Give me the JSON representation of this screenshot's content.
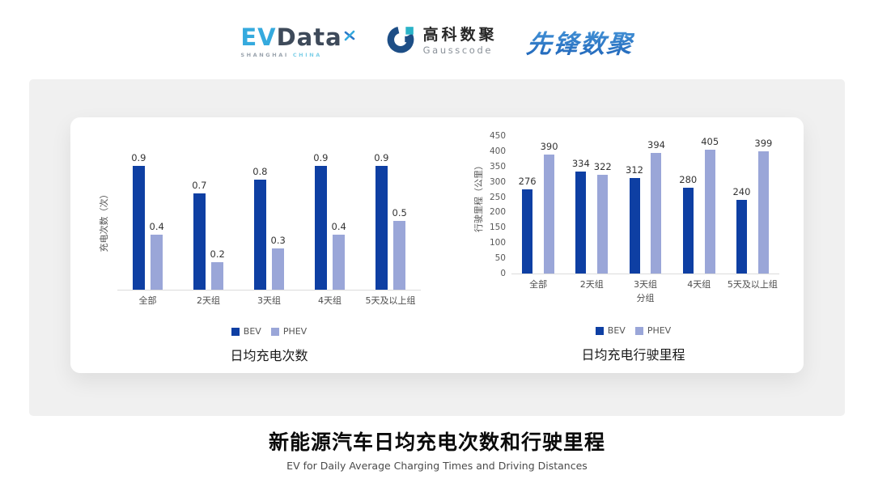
{
  "header": {
    "evdata_logo": {
      "ev": "EV",
      "data_word": "Data",
      "sub_shanghai": "SHANGHAI",
      "sub_china": "CHINA"
    },
    "gausscode_logo": {
      "cn": "高科数聚",
      "en": "Gausscode"
    },
    "pioneer_logo": {
      "text": "先锋数聚"
    }
  },
  "colors": {
    "bev": "#0e3fa3",
    "phev": "#9aa6d8",
    "evdata_cyan": "#35aade",
    "evdata_slate": "#3e4a5a",
    "gauss_navy": "#1d4e86",
    "gauss_teal": "#2ab3c8",
    "pioneer_blue": "#2878c8"
  },
  "chart_data": [
    {
      "type": "bar",
      "title": "日均充电次数",
      "ylabel": "充电次数（次）",
      "xlabel": "",
      "categories": [
        "全部",
        "2天组",
        "3天组",
        "4天组",
        "5天及以上组"
      ],
      "series": [
        {
          "name": "BEV",
          "values": [
            0.9,
            0.7,
            0.8,
            0.9,
            0.9
          ]
        },
        {
          "name": "PHEV",
          "values": [
            0.4,
            0.2,
            0.3,
            0.4,
            0.5
          ]
        }
      ],
      "ylim": [
        0,
        1.0
      ],
      "ticks": [],
      "grid": false,
      "legend_position": "bottom"
    },
    {
      "type": "bar",
      "title": "日均充电行驶里程",
      "ylabel": "行驶里程（公里）",
      "xlabel": "分组",
      "categories": [
        "全部",
        "2天组",
        "3天组",
        "4天组",
        "5天及以上组"
      ],
      "series": [
        {
          "name": "BEV",
          "values": [
            276,
            334,
            312,
            280,
            240
          ]
        },
        {
          "name": "PHEV",
          "values": [
            390,
            322,
            394,
            405,
            399
          ]
        }
      ],
      "ylim": [
        0,
        450
      ],
      "ticks": [
        0,
        50,
        100,
        150,
        200,
        250,
        300,
        350,
        400,
        450
      ],
      "grid": false,
      "legend_position": "bottom"
    }
  ],
  "footer": {
    "title": "新能源汽车日均充电次数和行驶里程",
    "subtitle": "EV for Daily Average Charging Times and Driving Distances"
  }
}
